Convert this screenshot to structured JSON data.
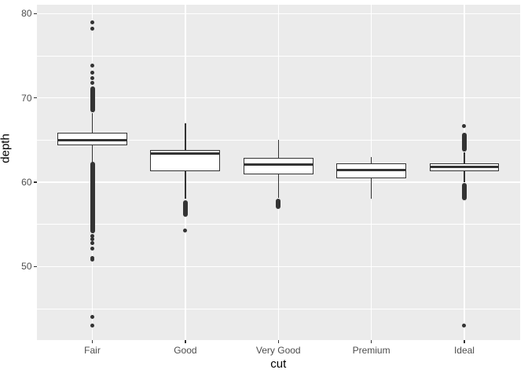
{
  "figure": {
    "background": "#FFFFFF",
    "panel_bg": "#EBEBEB",
    "grid_color": "#FFFFFF",
    "stroke_color": "#333333",
    "tick_text_color": "#4D4D4D",
    "title_text_color": "#000000"
  },
  "chart_data": {
    "type": "boxplot",
    "title": "",
    "xlabel": "cut",
    "ylabel": "depth",
    "categories": [
      "Fair",
      "Good",
      "Very Good",
      "Premium",
      "Ideal"
    ],
    "y_ticks": [
      80,
      70,
      60,
      50
    ],
    "y_minor_ticks": [
      75,
      65,
      55,
      45
    ],
    "ylim": [
      41.3,
      81.1
    ],
    "grid": "major-and-minor-horizontal, major-vertical-at-categories",
    "legend_position": "none",
    "boxes": [
      {
        "category": "Fair",
        "q1": 64.4,
        "median": 65.0,
        "q3": 65.9,
        "whisker_low": 62.2,
        "whisker_high": 68.2,
        "outlier_dense_ranges": [
          [
            68.3,
            71.4
          ],
          [
            53.9,
            62.4
          ]
        ],
        "outliers": [
          71.8,
          72.3,
          73.0,
          73.8,
          78.2,
          79.0,
          53.6,
          53.2,
          52.8,
          52.1,
          51.0,
          50.8,
          44.0,
          43.0
        ]
      },
      {
        "category": "Good",
        "q1": 61.3,
        "median": 63.4,
        "q3": 63.8,
        "whisker_low": 58.0,
        "whisker_high": 67.0,
        "outlier_dense_ranges": [
          [
            55.9,
            57.9
          ]
        ],
        "outliers": [
          54.3
        ]
      },
      {
        "category": "Very Good",
        "q1": 60.9,
        "median": 62.1,
        "q3": 62.9,
        "whisker_low": 58.1,
        "whisker_high": 65.0,
        "outlier_dense_ranges": [
          [
            56.8,
            58.0
          ]
        ],
        "outliers": []
      },
      {
        "category": "Premium",
        "q1": 60.5,
        "median": 61.4,
        "q3": 62.2,
        "whisker_low": 58.0,
        "whisker_high": 63.0,
        "outlier_dense_ranges": [],
        "outliers": []
      },
      {
        "category": "Ideal",
        "q1": 61.3,
        "median": 61.8,
        "q3": 62.2,
        "whisker_low": 60.0,
        "whisker_high": 63.5,
        "outlier_dense_ranges": [
          [
            63.6,
            65.9
          ],
          [
            57.9,
            59.9
          ]
        ],
        "outliers": [
          66.7,
          43.0
        ]
      }
    ]
  }
}
